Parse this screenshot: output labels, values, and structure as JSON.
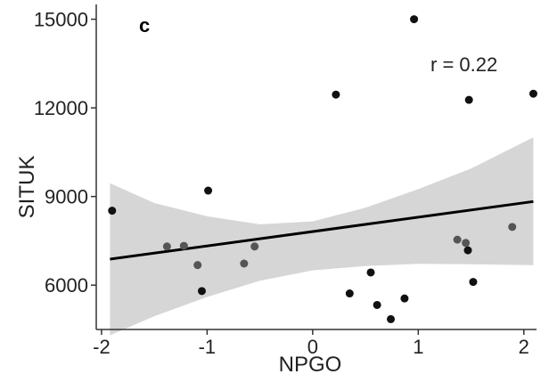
{
  "chart_data": {
    "type": "scatter",
    "panel_label": "c",
    "annotation": "r = 0.22",
    "xlabel": "NPGO",
    "ylabel": "SITUK",
    "xlim": [
      -2.05,
      2.12
    ],
    "ylim": [
      4500,
      15500
    ],
    "x_ticks": [
      -2,
      -1,
      0,
      1,
      2
    ],
    "y_ticks": [
      6000,
      9000,
      12000,
      15000
    ],
    "grid": false,
    "points": [
      {
        "x": -1.9,
        "y": 8520
      },
      {
        "x": -1.38,
        "y": 7310
      },
      {
        "x": -1.22,
        "y": 7330
      },
      {
        "x": -1.09,
        "y": 6680
      },
      {
        "x": -1.05,
        "y": 5800
      },
      {
        "x": -0.99,
        "y": 9200
      },
      {
        "x": -0.65,
        "y": 6730
      },
      {
        "x": -0.55,
        "y": 7310
      },
      {
        "x": 0.22,
        "y": 12450
      },
      {
        "x": 0.35,
        "y": 5720
      },
      {
        "x": 0.55,
        "y": 6430
      },
      {
        "x": 0.61,
        "y": 5330
      },
      {
        "x": 0.74,
        "y": 4850
      },
      {
        "x": 0.87,
        "y": 5550
      },
      {
        "x": 0.96,
        "y": 15000
      },
      {
        "x": 1.37,
        "y": 7540
      },
      {
        "x": 1.45,
        "y": 7430
      },
      {
        "x": 1.47,
        "y": 7180
      },
      {
        "x": 1.48,
        "y": 12270
      },
      {
        "x": 1.52,
        "y": 6110
      },
      {
        "x": 1.89,
        "y": 7970
      },
      {
        "x": 2.09,
        "y": 12480
      }
    ],
    "fit_line": {
      "x": [
        -1.92,
        2.09
      ],
      "y": [
        6880,
        8830
      ]
    },
    "confidence_band": {
      "x": [
        -1.92,
        -1.5,
        -1.0,
        -0.5,
        0.0,
        0.5,
        1.0,
        1.5,
        2.09
      ],
      "lower": [
        4300,
        4950,
        5600,
        6150,
        6500,
        6650,
        6720,
        6710,
        6680
      ],
      "upper": [
        9450,
        8780,
        8330,
        8060,
        8160,
        8620,
        9250,
        9950,
        11000
      ]
    },
    "colors": {
      "points": "#111111",
      "points_light": "#555555",
      "line": "#000000",
      "band": "#d6d6d6",
      "axis": "#333333"
    }
  }
}
